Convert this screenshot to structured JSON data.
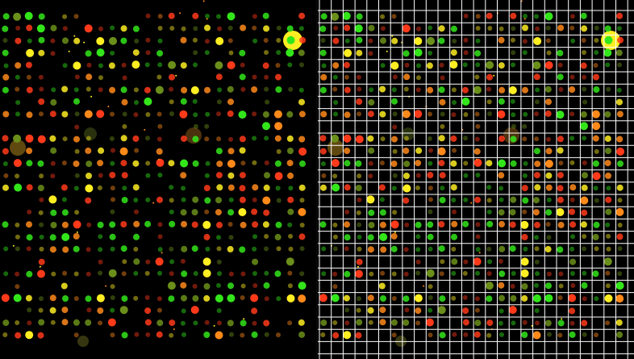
{
  "image": {
    "kind": "microarray-scan",
    "panels": [
      {
        "name": "raw-scan",
        "grid_overlay": false
      },
      {
        "name": "gridded-scan",
        "grid_overlay": true
      }
    ],
    "colors": {
      "background": "#000000",
      "grid": "#ffffff",
      "red_spot": "#ff3a1a",
      "green_spot": "#33e61a",
      "yellow_spot": "#ffee22",
      "orange_spot": "#ff8a1a"
    }
  }
}
